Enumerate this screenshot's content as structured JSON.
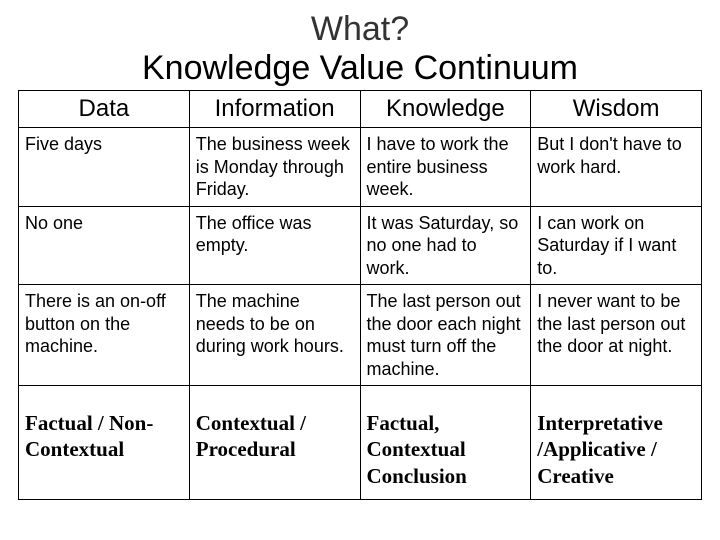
{
  "title": {
    "line1": "What?",
    "line2": "Knowledge Value Continuum"
  },
  "table": {
    "headers": [
      "Data",
      "Information",
      "Knowledge",
      "Wisdom"
    ],
    "rows": [
      [
        "Five days",
        "The business week is Monday through Friday.",
        "I have to work the entire business week.",
        "But I don't have to work hard."
      ],
      [
        "No one",
        "The office was empty.",
        "It was Saturday, so no one had to work.",
        "I can work on Saturday if I want to."
      ],
      [
        "There is an on-off button on the machine.",
        "The machine needs to be on during work hours.",
        "The last person out the door each night must turn off the machine.",
        "I never want to be the last person out the door at night."
      ]
    ],
    "summary": [
      "Factual / Non-Contextual",
      "Contextual / Procedural",
      "Factual, Contextual Conclusion",
      "Interpretative /Applicative / Creative"
    ]
  },
  "colors": {
    "background": "#ffffff",
    "text": "#000000",
    "title_what": "#333333",
    "border": "#000000"
  }
}
